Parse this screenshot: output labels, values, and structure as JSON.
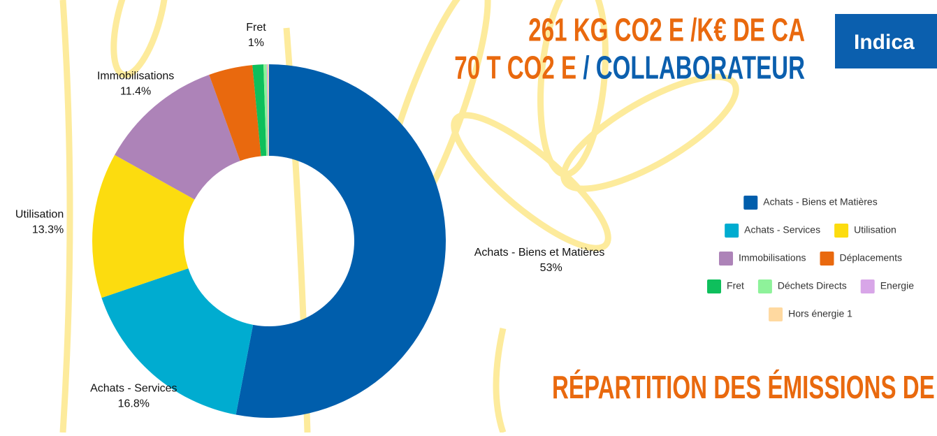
{
  "chart_data": {
    "type": "donut",
    "headline": {
      "line1": [
        "261 KG CO2 E",
        "/K€ DE CA"
      ],
      "line2": [
        "70 T CO2 E",
        "/ COLLABORATEUR"
      ]
    },
    "button": "Indica",
    "section_title": "RÉPARTITION DES ÉMISSIONS DE C",
    "categories": [
      "Achats - Biens et Matières",
      "Achats - Services",
      "Utilisation",
      "Immobilisations",
      "Déplacements",
      "Fret",
      "Déchets Directs",
      "Energie",
      "Hors énergie 1"
    ],
    "values": [
      53,
      16.8,
      13.3,
      11.4,
      4,
      1,
      0.3,
      0.1,
      0.1
    ],
    "value_labels": [
      "53%",
      "16.8%",
      "13.3%",
      "11.4%",
      null,
      "1%",
      null,
      null,
      null
    ],
    "colors": [
      "#005eac",
      "#00acd0",
      "#fcdc0f",
      "#ad83b8",
      "#e9690e",
      "#0ebf5c",
      "#8ef29a",
      "#d8a6e8",
      "#ffd9a0"
    ],
    "legend": "right"
  }
}
